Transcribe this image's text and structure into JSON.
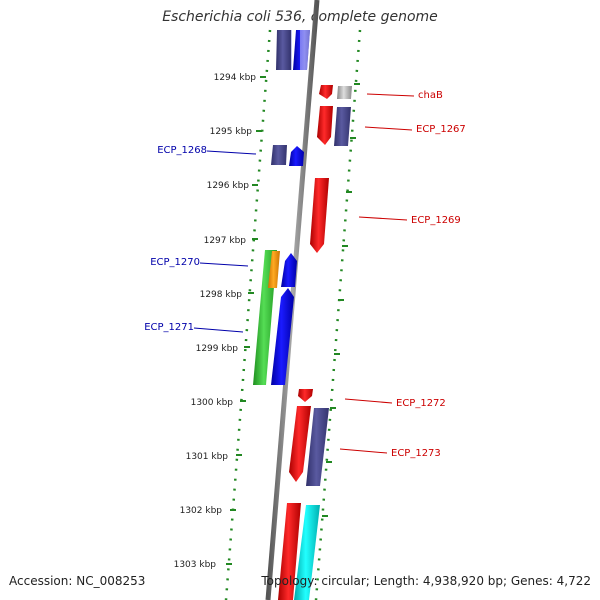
{
  "title": "Escherichia coli 536, complete genome",
  "accession_text": "Accession: NC_008253",
  "topology_text": "Topology: circular; Length: 4,938,920 bp; Genes: 4,722",
  "ticks": [
    "1294 kbp",
    "1295 kbp",
    "1296 kbp",
    "1297 kbp",
    "1298 kbp",
    "1299 kbp",
    "1300 kbp",
    "1301 kbp",
    "1302 kbp",
    "1303 kbp"
  ],
  "gene_labels_left": [
    "ECP_1268",
    "ECP_1270",
    "ECP_1271"
  ],
  "gene_labels_right": [
    "chaB",
    "ECP_1267",
    "ECP_1269",
    "ECP_1272",
    "ECP_1273"
  ],
  "colors": {
    "red": "#ee0000",
    "blue": "#0000ee",
    "slate": "#4a4a8c",
    "green": "#33bb33",
    "orange": "#ff9900",
    "cyan": "#00dddd",
    "grey": "#aaaaaa",
    "track_dots": "#228822",
    "label_blue": "#0000aa",
    "label_red": "#cc0000"
  }
}
